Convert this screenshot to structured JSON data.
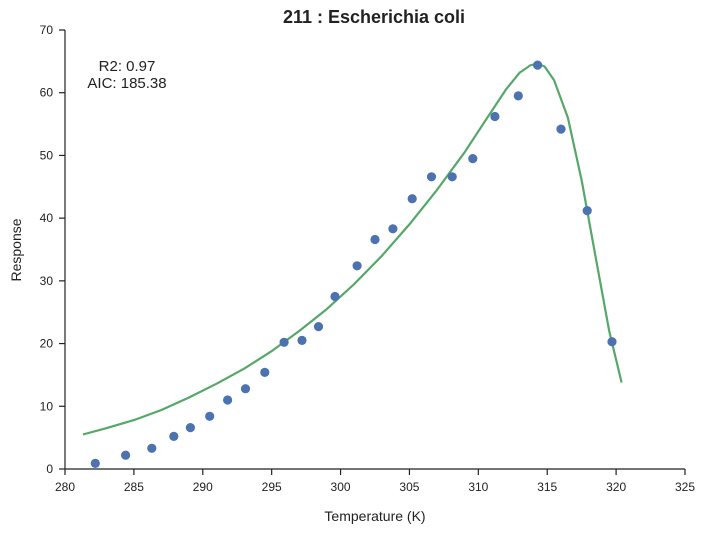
{
  "chart_data": {
    "type": "scatter",
    "title": "211 : Escherichia coli",
    "xlabel": "Temperature (K)",
    "ylabel": "Response",
    "xlim": [
      280,
      325
    ],
    "ylim": [
      0,
      70
    ],
    "xticks": [
      280,
      285,
      290,
      295,
      300,
      305,
      310,
      315,
      320,
      325
    ],
    "yticks": [
      0,
      10,
      20,
      30,
      40,
      50,
      60,
      70
    ],
    "grid": false,
    "annotations": [
      "R2: 0.97",
      "AIC: 185.38"
    ],
    "colors": {
      "points": "#4c72b0",
      "fit": "#55a868",
      "axis": "#222222"
    },
    "series": [
      {
        "kind": "points",
        "x": [
          282.2,
          284.4,
          286.3,
          287.9,
          289.1,
          290.5,
          291.8,
          293.1,
          294.5,
          295.9,
          297.2,
          298.4,
          299.6,
          301.2,
          302.5,
          303.8,
          305.2,
          306.6,
          308.1,
          309.6,
          311.2,
          312.9,
          314.3,
          316.0,
          317.9,
          319.7
        ],
        "y": [
          0.9,
          2.2,
          3.3,
          5.2,
          6.6,
          8.4,
          11.0,
          12.8,
          15.4,
          20.2,
          20.5,
          22.7,
          27.5,
          32.4,
          36.6,
          38.3,
          43.1,
          46.6,
          46.6,
          49.5,
          56.2,
          59.5,
          64.4,
          54.2,
          41.2,
          20.3
        ]
      },
      {
        "kind": "fit-line",
        "x": [
          281.3,
          283.0,
          285.0,
          287.0,
          289.0,
          291.0,
          293.0,
          295.0,
          297.0,
          299.0,
          301.0,
          303.0,
          305.0,
          307.0,
          309.0,
          310.5,
          312.0,
          313.0,
          313.8,
          314.3,
          314.8,
          315.5,
          316.5,
          317.5,
          318.5,
          319.5,
          320.4
        ],
        "y": [
          5.5,
          6.5,
          7.8,
          9.4,
          11.4,
          13.6,
          16.0,
          18.8,
          22.0,
          25.5,
          29.5,
          34.0,
          39.0,
          44.5,
          50.5,
          55.5,
          60.5,
          63.2,
          64.4,
          64.6,
          64.2,
          62.0,
          56.0,
          46.0,
          34.0,
          22.0,
          13.8
        ]
      }
    ]
  }
}
